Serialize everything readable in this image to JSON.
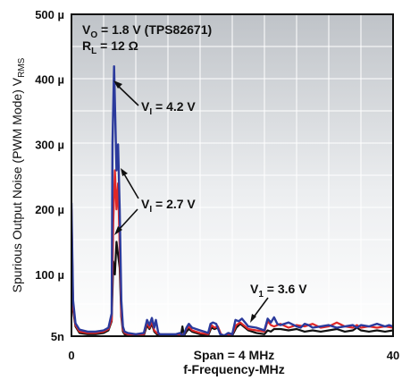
{
  "chart_data": {
    "type": "line",
    "ylabel": "Spurious Output Noise (PWM Mode) V",
    "ylabel_sub": "RMS",
    "xlabel": "f-Frequency-MHz",
    "xlim": [
      0,
      40
    ],
    "ylim_uV": [
      5,
      500
    ],
    "x_ticks": [
      {
        "value": 0,
        "label": "0"
      },
      {
        "value": 40,
        "label": "40"
      }
    ],
    "y_ticks": [
      {
        "value": 5,
        "label": "5n"
      },
      {
        "value": 100,
        "label": "100 µ"
      },
      {
        "value": 200,
        "label": "200 µ"
      },
      {
        "value": 300,
        "label": "300 µ"
      },
      {
        "value": 400,
        "label": "400 µ"
      },
      {
        "value": 500,
        "label": "500 µ"
      }
    ],
    "grid": true,
    "annotations": {
      "line1_main": "V",
      "line1_sub": "O",
      "line1_rest": " = 1.8 V (TPS82671)",
      "line2_main": "R",
      "line2_sub": "L",
      "line2_rest": " = 12 Ω",
      "span": "Span = 4 MHz",
      "label_42_main": "V",
      "label_42_sub": "I",
      "label_42_rest": " = 4.2 V",
      "label_27_main": "V",
      "label_27_sub": "I",
      "label_27_rest": " = 2.7 V",
      "label_36_main": "V",
      "label_36_sub": "1",
      "label_36_rest": " = 3.6 V"
    },
    "series": [
      {
        "name": "V_I = 4.2 V",
        "color": "#2b3a9c",
        "x": [
          0,
          0.2,
          0.5,
          1,
          2,
          3,
          4,
          4.6,
          5,
          5.1,
          5.3,
          5.6,
          5.8,
          6.0,
          6.2,
          6.4,
          6.6,
          7,
          8,
          9,
          9.4,
          9.7,
          10.0,
          10.3,
          10.5,
          10.8,
          11,
          12,
          13,
          13.5,
          13.8,
          14,
          14.3,
          14.6,
          15,
          16,
          16.5,
          17,
          17.3,
          17.6,
          18,
          18.5,
          19,
          19.5,
          20,
          20.4,
          20.8,
          21.2,
          22,
          23,
          24,
          24.4,
          24.8,
          25.2,
          25.6,
          26,
          27,
          28,
          28.5,
          29,
          29.5,
          30,
          31,
          32,
          33,
          34,
          35,
          35.5,
          36,
          37,
          38,
          39,
          39.5,
          40
        ],
        "y": [
          210,
          60,
          25,
          15,
          12,
          12,
          14,
          18,
          40,
          300,
          420,
          260,
          300,
          200,
          60,
          20,
          12,
          10,
          8,
          10,
          30,
          22,
          33,
          18,
          30,
          10,
          8,
          8,
          8,
          10,
          6,
          8,
          18,
          24,
          18,
          14,
          12,
          10,
          24,
          26,
          24,
          8,
          6,
          10,
          8,
          30,
          28,
          32,
          20,
          18,
          14,
          32,
          26,
          34,
          24,
          22,
          26,
          20,
          18,
          24,
          22,
          18,
          20,
          22,
          18,
          20,
          22,
          18,
          22,
          20,
          24,
          20,
          22,
          20
        ]
      },
      {
        "name": "V_I = 2.7 V",
        "color": "#e02727",
        "x": [
          0,
          0.2,
          0.5,
          1,
          2,
          3,
          4,
          4.6,
          5,
          5.2,
          5.4,
          5.6,
          5.8,
          6.0,
          6.2,
          6.4,
          6.6,
          7,
          8,
          9,
          9.4,
          9.7,
          10.0,
          10.3,
          10.6,
          11,
          12,
          13,
          14,
          14.3,
          14.6,
          15,
          16,
          17,
          17.4,
          17.8,
          18.2,
          18.6,
          19,
          20,
          20.5,
          21,
          22,
          23,
          24,
          24.4,
          24.8,
          25.2,
          26,
          27,
          28,
          29,
          30,
          31,
          32,
          33,
          34,
          35,
          35.5,
          36,
          37,
          38,
          39,
          40
        ],
        "y": [
          200,
          50,
          22,
          12,
          10,
          10,
          12,
          16,
          30,
          180,
          260,
          200,
          240,
          140,
          40,
          15,
          10,
          8,
          6,
          8,
          26,
          18,
          28,
          14,
          10,
          8,
          6,
          6,
          8,
          16,
          20,
          14,
          10,
          8,
          22,
          18,
          20,
          8,
          6,
          8,
          22,
          26,
          16,
          14,
          12,
          28,
          22,
          20,
          24,
          18,
          22,
          20,
          24,
          18,
          20,
          26,
          20,
          18,
          22,
          18,
          20,
          18,
          20,
          18
        ]
      },
      {
        "name": "V_1 = 3.6 V",
        "color": "#111111",
        "x": [
          0,
          0.2,
          0.5,
          1,
          2,
          3,
          4,
          4.6,
          5,
          5.2,
          5.4,
          5.6,
          5.8,
          6.0,
          6.2,
          6.4,
          6.6,
          7,
          8,
          9,
          9.4,
          9.7,
          10.0,
          10.3,
          10.6,
          11,
          12,
          13,
          13.6,
          13.8,
          14,
          14.3,
          14.6,
          15,
          16,
          17,
          17.4,
          17.8,
          18.2,
          18.6,
          19,
          20,
          20.5,
          21,
          22,
          23,
          24,
          24.4,
          24.8,
          25.2,
          26,
          27,
          28,
          29,
          30,
          31,
          32,
          33,
          34,
          35,
          35.5,
          36,
          37,
          38,
          39,
          40
        ],
        "y": [
          190,
          45,
          20,
          10,
          8,
          8,
          10,
          14,
          28,
          120,
          100,
          150,
          130,
          110,
          35,
          12,
          8,
          6,
          5,
          6,
          22,
          16,
          24,
          12,
          8,
          6,
          5,
          5,
          5,
          20,
          6,
          12,
          16,
          12,
          8,
          6,
          18,
          16,
          18,
          6,
          5,
          6,
          18,
          24,
          14,
          10,
          8,
          14,
          12,
          16,
          16,
          14,
          16,
          12,
          14,
          12,
          14,
          16,
          12,
          14,
          18,
          14,
          12,
          14,
          12,
          14
        ]
      }
    ]
  }
}
